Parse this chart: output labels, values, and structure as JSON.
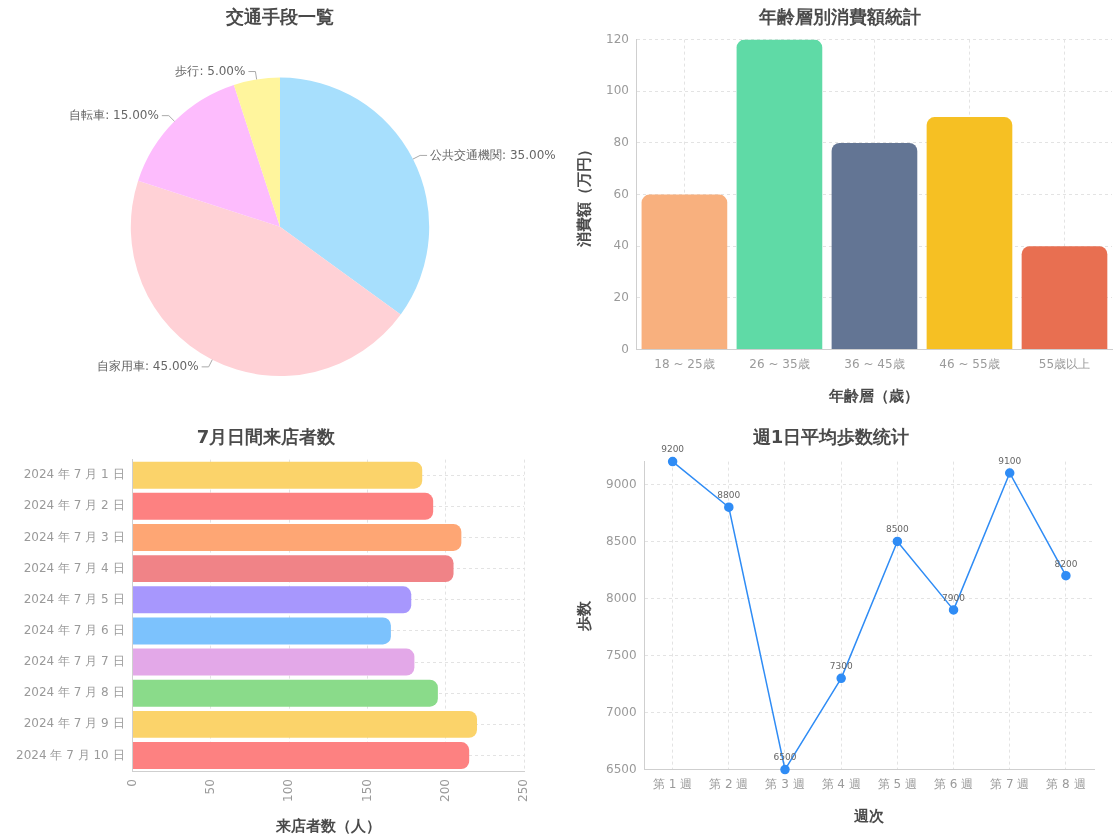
{
  "chart_data": [
    {
      "type": "pie",
      "title": "交通手段一覧",
      "categories": [
        "公共交通機関",
        "自家用車",
        "自転車",
        "歩行"
      ],
      "values": [
        35,
        45,
        15,
        5
      ],
      "colors": [
        "#a7dffd",
        "#ffd1d6",
        "#fdbcfd",
        "#fff59d"
      ],
      "value_labels": [
        "35.00%",
        "45.00%",
        "15.00%",
        "5.00%"
      ]
    },
    {
      "type": "bar",
      "title": "年齢層別消費額統計",
      "xlabel": "年齢層（歳）",
      "ylabel": "消費額（万円）",
      "categories": [
        "18 ~ 25歳",
        "26 ~ 35歳",
        "36 ~ 45歳",
        "46 ~ 55歳",
        "55歳以上"
      ],
      "values": [
        60,
        120,
        80,
        90,
        40
      ],
      "colors": [
        "#f8b07e",
        "#5fdaa6",
        "#637594",
        "#f6c023",
        "#e86f51"
      ],
      "ylim": [
        0,
        120
      ],
      "yticks": [
        0,
        20,
        40,
        60,
        80,
        100,
        120
      ],
      "grid": true
    },
    {
      "type": "bar",
      "orientation": "horizontal",
      "title": "7月日間来店者数",
      "xlabel": "来店者数（人）",
      "categories": [
        "2024 年 7 月 1 日",
        "2024 年 7 月 2 日",
        "2024 年 7 月 3 日",
        "2024 年 7 月 4 日",
        "2024 年 7 月 5 日",
        "2024 年 7 月 6 日",
        "2024 年 7 月 7 日",
        "2024 年 7 月 8 日",
        "2024 年 7 月 9 日",
        "2024 年 7 月 10 日"
      ],
      "values": [
        185,
        192,
        210,
        205,
        178,
        165,
        180,
        195,
        220,
        215
      ],
      "colors": [
        "#fbd36a",
        "#fd8181",
        "#fea674",
        "#f08387",
        "#a797fd",
        "#7cc2fd",
        "#e3a8e8",
        "#8adb8a",
        "#fbd36a",
        "#fd8181"
      ],
      "xlim": [
        0,
        250
      ],
      "xticks": [
        0,
        50,
        100,
        150,
        200,
        250
      ],
      "grid": true
    },
    {
      "type": "line",
      "title": "週1日平均歩数统计",
      "xlabel": "週次",
      "ylabel": "歩数",
      "categories": [
        "第 1 週",
        "第 2 週",
        "第 3 週",
        "第 4 週",
        "第 5 週",
        "第 6 週",
        "第 7 週",
        "第 8 週"
      ],
      "values": [
        9200,
        8800,
        6500,
        7300,
        8500,
        7900,
        9100,
        8200
      ],
      "color": "#2f8cf5",
      "ylim": [
        6500,
        9200
      ],
      "yticks": [
        6500,
        7000,
        7500,
        8000,
        8500,
        9000
      ],
      "grid": true,
      "data_labels": true,
      "marker": "circle",
      "line_style": "solid"
    }
  ]
}
